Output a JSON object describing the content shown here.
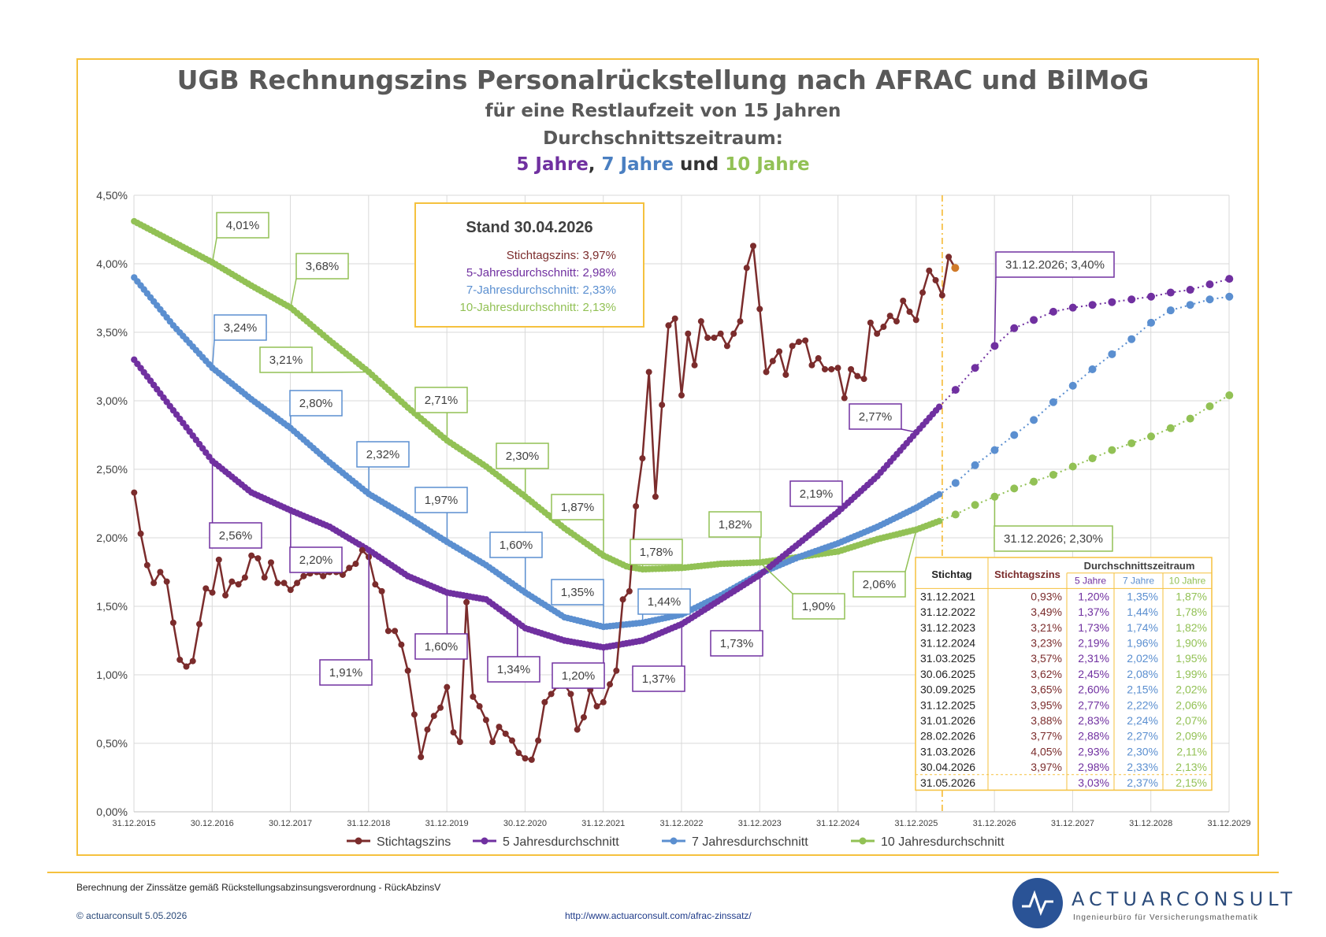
{
  "title": {
    "line1": "UGB Rechnungszins Personalrückstellung nach AFRAC und BilMoG",
    "line2": "für eine Restlaufzeit von 15 Jahren",
    "line3": "Durchschnittszeitraum:",
    "line4_a": "5 Jahre",
    "line4_b": ", ",
    "line4_c": "7 Jahre",
    "line4_d": " und ",
    "line4_e": "10 Jahre"
  },
  "colors": {
    "stichtag": "#7b2c2c",
    "j5": "#7030a0",
    "j7": "#5b8fd0",
    "j10": "#92c155",
    "accent": "#f5c13e"
  },
  "stand_box": {
    "heading": "Stand 30.04.2026",
    "lines": [
      "Stichtagszins: 3,97%",
      "5-Jahresdurchschnitt: 2,98%",
      "7-Jahresdurchschnitt: 2,33%",
      "10-Jahresdurchschnitt: 2,13%"
    ]
  },
  "chart_data": {
    "type": "line",
    "ylim": [
      0,
      4.5
    ],
    "yticks": [
      "0,00%",
      "0,50%",
      "1,00%",
      "1,50%",
      "2,00%",
      "2,50%",
      "3,00%",
      "3,50%",
      "4,00%",
      "4,50%"
    ],
    "xrange": [
      2015.997,
      2029.997
    ],
    "xticks": [
      "31.12.2015",
      "30.12.2016",
      "30.12.2017",
      "31.12.2018",
      "31.12.2019",
      "30.12.2020",
      "31.12.2021",
      "31.12.2022",
      "31.12.2023",
      "31.12.2024",
      "31.12.2025",
      "31.12.2026",
      "31.12.2027",
      "31.12.2028",
      "31.12.2029"
    ],
    "current_date_marker": 2026.33,
    "legend": [
      "Stichtagszins",
      "5 Jahresdurchschnitt",
      "7 Jahresdurchschnitt",
      "10 Jahresdurchschnitt"
    ],
    "legend_position": "bottom",
    "series": [
      {
        "name": "Stichtagszins",
        "x_start": 2016.0,
        "x_step": 0.0833,
        "values": [
          2.33,
          2.03,
          1.8,
          1.67,
          1.75,
          1.68,
          1.38,
          1.11,
          1.06,
          1.1,
          1.37,
          1.63,
          1.6,
          1.84,
          1.58,
          1.68,
          1.66,
          1.71,
          1.87,
          1.85,
          1.71,
          1.82,
          1.67,
          1.67,
          1.62,
          1.67,
          1.72,
          1.74,
          1.75,
          1.72,
          1.75,
          1.75,
          1.73,
          1.78,
          1.81,
          1.91,
          1.86,
          1.66,
          1.61,
          1.32,
          1.32,
          1.22,
          1.03,
          0.71,
          0.4,
          0.6,
          0.7,
          0.76,
          0.91,
          0.58,
          0.51,
          1.53,
          0.84,
          0.77,
          0.67,
          0.51,
          0.62,
          0.57,
          0.52,
          0.43,
          0.39,
          0.38,
          0.52,
          0.8,
          0.86,
          0.92,
          0.93,
          0.86,
          0.6,
          0.69,
          0.89,
          0.77,
          0.8,
          0.93,
          1.03,
          1.55,
          1.61,
          2.23,
          2.58,
          3.21,
          2.3,
          2.97,
          3.55,
          3.6,
          3.04,
          3.49,
          3.26,
          3.58,
          3.46,
          3.46,
          3.49,
          3.4,
          3.49,
          3.58,
          3.97,
          4.13,
          3.67,
          3.21,
          3.29,
          3.36,
          3.19,
          3.4,
          3.43,
          3.44,
          3.26,
          3.31,
          3.23,
          3.23,
          3.24,
          3.02,
          3.23,
          3.18,
          3.16,
          3.57,
          3.49,
          3.54,
          3.62,
          3.58,
          3.73,
          3.65,
          3.59,
          3.79,
          3.95,
          3.88,
          3.77,
          4.05,
          3.97
        ]
      },
      {
        "name": "5 Jahresdurchschnitt",
        "knots": [
          [
            2016.0,
            3.3
          ],
          [
            2016.5,
            2.93
          ],
          [
            2017.0,
            2.56
          ],
          [
            2017.5,
            2.33
          ],
          [
            2018.0,
            2.2
          ],
          [
            2018.5,
            2.08
          ],
          [
            2019.0,
            1.91
          ],
          [
            2019.5,
            1.72
          ],
          [
            2020.0,
            1.6
          ],
          [
            2020.5,
            1.55
          ],
          [
            2021.0,
            1.34
          ],
          [
            2021.5,
            1.25
          ],
          [
            2022.0,
            1.2
          ],
          [
            2022.5,
            1.25
          ],
          [
            2023.0,
            1.37
          ],
          [
            2023.5,
            1.55
          ],
          [
            2024.0,
            1.73
          ],
          [
            2024.5,
            1.96
          ],
          [
            2025.0,
            2.19
          ],
          [
            2025.5,
            2.45
          ],
          [
            2026.0,
            2.77
          ],
          [
            2026.33,
            2.98
          ]
        ],
        "forecast": [
          [
            2026.33,
            2.98
          ],
          [
            2026.5,
            3.08
          ],
          [
            2026.75,
            3.24
          ],
          [
            2027.0,
            3.4
          ],
          [
            2027.25,
            3.53
          ],
          [
            2027.5,
            3.59
          ],
          [
            2027.75,
            3.65
          ],
          [
            2028.0,
            3.68
          ],
          [
            2028.25,
            3.7
          ],
          [
            2028.5,
            3.72
          ],
          [
            2028.75,
            3.74
          ],
          [
            2029.0,
            3.76
          ],
          [
            2029.25,
            3.79
          ],
          [
            2029.5,
            3.81
          ],
          [
            2029.75,
            3.85
          ],
          [
            2030.0,
            3.89
          ]
        ]
      },
      {
        "name": "7 Jahresdurchschnitt",
        "knots": [
          [
            2016.0,
            3.9
          ],
          [
            2016.5,
            3.55
          ],
          [
            2017.0,
            3.24
          ],
          [
            2017.5,
            3.01
          ],
          [
            2018.0,
            2.8
          ],
          [
            2018.5,
            2.55
          ],
          [
            2019.0,
            2.32
          ],
          [
            2019.5,
            2.15
          ],
          [
            2020.0,
            1.97
          ],
          [
            2020.5,
            1.8
          ],
          [
            2021.0,
            1.6
          ],
          [
            2021.5,
            1.42
          ],
          [
            2022.0,
            1.35
          ],
          [
            2022.5,
            1.38
          ],
          [
            2023.0,
            1.44
          ],
          [
            2023.5,
            1.58
          ],
          [
            2024.0,
            1.74
          ],
          [
            2024.5,
            1.86
          ],
          [
            2025.0,
            1.96
          ],
          [
            2025.5,
            2.08
          ],
          [
            2026.0,
            2.22
          ],
          [
            2026.33,
            2.33
          ]
        ],
        "forecast": [
          [
            2026.33,
            2.33
          ],
          [
            2026.5,
            2.4
          ],
          [
            2026.75,
            2.53
          ],
          [
            2027.0,
            2.64
          ],
          [
            2027.25,
            2.75
          ],
          [
            2027.5,
            2.86
          ],
          [
            2027.75,
            2.99
          ],
          [
            2028.0,
            3.11
          ],
          [
            2028.25,
            3.23
          ],
          [
            2028.5,
            3.34
          ],
          [
            2028.75,
            3.45
          ],
          [
            2029.0,
            3.57
          ],
          [
            2029.25,
            3.66
          ],
          [
            2029.5,
            3.7
          ],
          [
            2029.75,
            3.74
          ],
          [
            2030.0,
            3.76
          ]
        ]
      },
      {
        "name": "10 Jahresdurchschnitt",
        "knots": [
          [
            2016.0,
            4.31
          ],
          [
            2016.5,
            4.16
          ],
          [
            2017.0,
            4.01
          ],
          [
            2017.5,
            3.84
          ],
          [
            2018.0,
            3.68
          ],
          [
            2018.5,
            3.44
          ],
          [
            2019.0,
            3.21
          ],
          [
            2019.5,
            2.95
          ],
          [
            2020.0,
            2.71
          ],
          [
            2020.5,
            2.52
          ],
          [
            2021.0,
            2.3
          ],
          [
            2021.5,
            2.07
          ],
          [
            2022.0,
            1.87
          ],
          [
            2022.3,
            1.79
          ],
          [
            2022.5,
            1.77
          ],
          [
            2023.0,
            1.78
          ],
          [
            2023.5,
            1.81
          ],
          [
            2024.0,
            1.82
          ],
          [
            2024.5,
            1.86
          ],
          [
            2025.0,
            1.9
          ],
          [
            2025.5,
            1.99
          ],
          [
            2026.0,
            2.06
          ],
          [
            2026.33,
            2.13
          ]
        ],
        "forecast": [
          [
            2026.33,
            2.13
          ],
          [
            2026.5,
            2.17
          ],
          [
            2026.75,
            2.24
          ],
          [
            2027.0,
            2.3
          ],
          [
            2027.25,
            2.36
          ],
          [
            2027.5,
            2.41
          ],
          [
            2027.75,
            2.46
          ],
          [
            2028.0,
            2.52
          ],
          [
            2028.25,
            2.58
          ],
          [
            2028.5,
            2.64
          ],
          [
            2028.75,
            2.69
          ],
          [
            2029.0,
            2.74
          ],
          [
            2029.25,
            2.8
          ],
          [
            2029.5,
            2.87
          ],
          [
            2029.75,
            2.96
          ],
          [
            2030.0,
            3.04
          ]
        ]
      }
    ],
    "callouts": [
      {
        "text": "4,01%",
        "s": "j10"
      },
      {
        "text": "3,68%",
        "s": "j10"
      },
      {
        "text": "3,21%",
        "s": "j10"
      },
      {
        "text": "2,71%",
        "s": "j10"
      },
      {
        "text": "2,30%",
        "s": "j10"
      },
      {
        "text": "1,87%",
        "s": "j10"
      },
      {
        "text": "1,78%",
        "s": "j10"
      },
      {
        "text": "1,82%",
        "s": "j10"
      },
      {
        "text": "1,90%",
        "s": "j10"
      },
      {
        "text": "2,06%",
        "s": "j10"
      },
      {
        "text": "31.12.2026; 2,30%",
        "s": "j10"
      },
      {
        "text": "3,24%",
        "s": "j7"
      },
      {
        "text": "2,80%",
        "s": "j7"
      },
      {
        "text": "2,32%",
        "s": "j7"
      },
      {
        "text": "1,97%",
        "s": "j7"
      },
      {
        "text": "1,60%",
        "s": "j7"
      },
      {
        "text": "1,35%",
        "s": "j7"
      },
      {
        "text": "1,44%",
        "s": "j7"
      },
      {
        "text": "2,56%",
        "s": "j5"
      },
      {
        "text": "2,20%",
        "s": "j5"
      },
      {
        "text": "1,91%",
        "s": "j5"
      },
      {
        "text": "1,60%",
        "s": "j5"
      },
      {
        "text": "1,34%",
        "s": "j5"
      },
      {
        "text": "1,20%",
        "s": "j5"
      },
      {
        "text": "1,37%",
        "s": "j5"
      },
      {
        "text": "1,73%",
        "s": "j5"
      },
      {
        "text": "2,19%",
        "s": "j5"
      },
      {
        "text": "2,77%",
        "s": "j5"
      },
      {
        "text": "31.12.2026; 3,40%",
        "s": "j5"
      }
    ],
    "table": {
      "header_stichtag": "Stichtag",
      "header_zins": "Stichtagszins",
      "header_group": "Durchschnittszeitraum",
      "sub_headers": [
        "5 Jahre",
        "7 Jahre",
        "10 Jahre"
      ],
      "rows": [
        [
          "31.12.2021",
          "0,93%",
          "1,20%",
          "1,35%",
          "1,87%"
        ],
        [
          "31.12.2022",
          "3,49%",
          "1,37%",
          "1,44%",
          "1,78%"
        ],
        [
          "31.12.2023",
          "3,21%",
          "1,73%",
          "1,74%",
          "1,82%"
        ],
        [
          "31.12.2024",
          "3,23%",
          "2,19%",
          "1,96%",
          "1,90%"
        ],
        [
          "31.03.2025",
          "3,57%",
          "2,31%",
          "2,02%",
          "1,95%"
        ],
        [
          "30.06.2025",
          "3,62%",
          "2,45%",
          "2,08%",
          "1,99%"
        ],
        [
          "30.09.2025",
          "3,65%",
          "2,60%",
          "2,15%",
          "2,02%"
        ],
        [
          "31.12.2025",
          "3,95%",
          "2,77%",
          "2,22%",
          "2,06%"
        ],
        [
          "31.01.2026",
          "3,88%",
          "2,83%",
          "2,24%",
          "2,07%"
        ],
        [
          "28.02.2026",
          "3,77%",
          "2,88%",
          "2,27%",
          "2,09%"
        ],
        [
          "31.03.2026",
          "4,05%",
          "2,93%",
          "2,30%",
          "2,11%"
        ],
        [
          "30.04.2026",
          "3,97%",
          "2,98%",
          "2,33%",
          "2,13%"
        ],
        [
          "31.05.2026",
          "",
          "3,03%",
          "2,37%",
          "2,15%"
        ]
      ]
    }
  },
  "footer": {
    "left": "Berechnung der Zinssätze gemäß Rückstellungsabzinsungsverordnung - RückAbzinsV",
    "copyright": "© actuarconsult 5.05.2026",
    "url": "http://www.actuarconsult.com/afrac-zinssatz/",
    "logo_name": "ACTUARCONSULT",
    "logo_sub": "Ingenieurbüro für Versicherungsmathematik"
  }
}
